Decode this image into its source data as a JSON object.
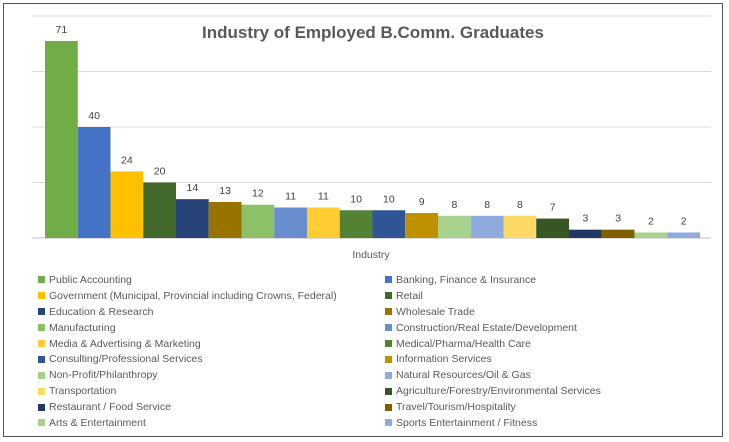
{
  "chart_data": {
    "type": "bar",
    "title": "Industry of Employed B.Comm. Graduates",
    "xlabel": "Industry",
    "ylabel": "",
    "ylim": [
      0,
      80
    ],
    "grid": true,
    "legend_position": "bottom",
    "categories": [
      "Public Accounting",
      "Banking, Finance & Insurance",
      "Government (Municipal, Provincial including Crowns, Federal)",
      "Retail",
      "Education & Research",
      "Wholesale Trade",
      "Manufacturing",
      "Construction/Real Estate/Development",
      "Media & Advertising & Marketing",
      "Medical/Pharma/Health Care",
      "Consulting/Professional Services",
      "Information Services",
      "Non-Profit/Philanthropy",
      "Natural Resources/Oil & Gas",
      "Transportation",
      "Agriculture/Forestry/Environmental Services",
      "Restaurant / Food Service",
      "Travel/Tourism/Hospitality",
      "Arts & Entertainment",
      "Sports Entertainment / Fitness"
    ],
    "values": [
      71,
      40,
      24,
      20,
      14,
      13,
      12,
      11,
      11,
      10,
      10,
      9,
      8,
      8,
      8,
      7,
      3,
      3,
      2,
      2
    ],
    "colors": [
      "#70AD47",
      "#4472C4",
      "#FFC000",
      "#43682B",
      "#264478",
      "#997300",
      "#8CC168",
      "#698ED0",
      "#FFCD33",
      "#548235",
      "#2F5597",
      "#BF9000",
      "#A9D18E",
      "#8FAADC",
      "#FFD966",
      "#375623",
      "#203864",
      "#7F6000",
      "#A9D18E",
      "#8FAADC"
    ]
  }
}
